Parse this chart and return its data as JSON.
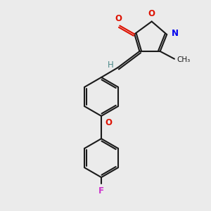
{
  "background_color": "#ebebeb",
  "bond_color": "#1a1a1a",
  "oxygen_color": "#dd1100",
  "nitrogen_color": "#0000ee",
  "fluorine_color": "#cc33cc",
  "hydrogen_color": "#4a8888",
  "line_width": 1.5,
  "fig_width": 3.0,
  "fig_height": 3.0,
  "dpi": 100,
  "xlim": [
    0,
    10
  ],
  "ylim": [
    0,
    10
  ]
}
